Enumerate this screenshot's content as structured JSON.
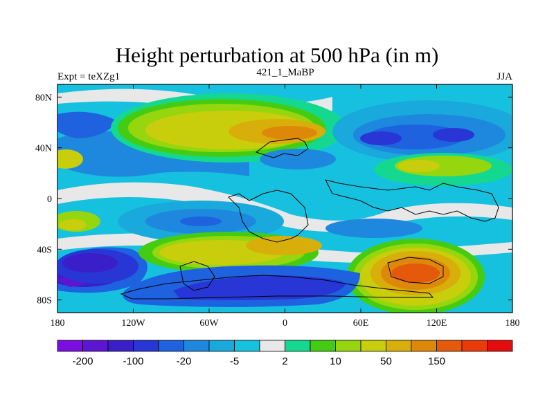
{
  "title": "Height perturbation at 500 hPa (in m)",
  "subtitle_left": "Expt = teXZg1",
  "subtitle_center": "421_1_MaBP",
  "subtitle_right": "JJA",
  "map": {
    "projection": "cylindrical equidistant",
    "lon_range": [
      -180,
      180
    ],
    "lat_range": [
      -90,
      90
    ],
    "x_ticks": [
      {
        "value": -180,
        "label": "180"
      },
      {
        "value": -120,
        "label": "120W"
      },
      {
        "value": -60,
        "label": "60W"
      },
      {
        "value": 0,
        "label": "0"
      },
      {
        "value": 60,
        "label": "60E"
      },
      {
        "value": 120,
        "label": "120E"
      },
      {
        "value": 180,
        "label": "180"
      }
    ],
    "y_ticks": [
      {
        "value": 80,
        "label": "80N"
      },
      {
        "value": 40,
        "label": "40N"
      },
      {
        "value": 0,
        "label": "0"
      },
      {
        "value": -40,
        "label": "40S"
      },
      {
        "value": -80,
        "label": "80S"
      }
    ],
    "features": [
      {
        "name": "north-pacific-positive",
        "category": "positive",
        "level": 50,
        "lon": -100,
        "lat": 55,
        "rx": 58,
        "ry": 25
      },
      {
        "name": "north-pacific-positive-core",
        "category": "positive",
        "level": 100,
        "lon": -45,
        "lat": 52,
        "rx": 18,
        "ry": 9
      },
      {
        "name": "north-asia-negative",
        "category": "negative",
        "level": -20,
        "lon": 105,
        "lat": 45,
        "rx": 55,
        "ry": 22
      },
      {
        "name": "north-asia-negative-core",
        "category": "negative",
        "level": -50,
        "lon": 100,
        "lat": 45,
        "rx": 18,
        "ry": 8
      },
      {
        "name": "equatorial-atlantic-negative",
        "category": "negative",
        "level": -20,
        "lon": -100,
        "lat": -18,
        "rx": 45,
        "ry": 12
      },
      {
        "name": "equatorial-west-positive",
        "category": "positive",
        "level": 10,
        "lon": -170,
        "lat": -22,
        "rx": 15,
        "ry": 10
      },
      {
        "name": "south-atlantic-positive",
        "category": "positive",
        "level": 50,
        "lon": -70,
        "lat": -45,
        "rx": 55,
        "ry": 15
      },
      {
        "name": "south-indian-positive",
        "category": "positive",
        "level": 150,
        "lon": 100,
        "lat": -55,
        "rx": 45,
        "ry": 25
      },
      {
        "name": "south-indian-positive-core",
        "category": "positive",
        "level": 150,
        "lon": 105,
        "lat": -55,
        "rx": 20,
        "ry": 10
      },
      {
        "name": "southern-ocean-negative",
        "category": "negative",
        "level": -50,
        "lon": -15,
        "lat": -65,
        "rx": 55,
        "ry": 15
      },
      {
        "name": "south-pacific-negative",
        "category": "negative",
        "level": -100,
        "lon": -155,
        "lat": -48,
        "rx": 25,
        "ry": 12
      },
      {
        "name": "pacific-arctic-negative",
        "category": "negative",
        "level": -20,
        "lon": -150,
        "lat": 50,
        "rx": 25,
        "ry": 20
      },
      {
        "name": "mideast-positive",
        "category": "positive",
        "level": 10,
        "lon": 125,
        "lat": 20,
        "rx": 40,
        "ry": 12
      }
    ]
  },
  "colorbar": {
    "colors": [
      "#7B0DE0",
      "#5D15D4",
      "#3A1FC8",
      "#2836D6",
      "#1E62E0",
      "#1E88DE",
      "#1AA9DD",
      "#16C1DF",
      "#E8E8E8",
      "#14D890",
      "#44CC12",
      "#96D60E",
      "#C8CD0C",
      "#D8AE0A",
      "#DE880A",
      "#E55A0A",
      "#EB3A0A",
      "#E50C0C"
    ],
    "labels": [
      "-200",
      "-100",
      "-20",
      "-5",
      "2",
      "10",
      "50",
      "150"
    ]
  }
}
